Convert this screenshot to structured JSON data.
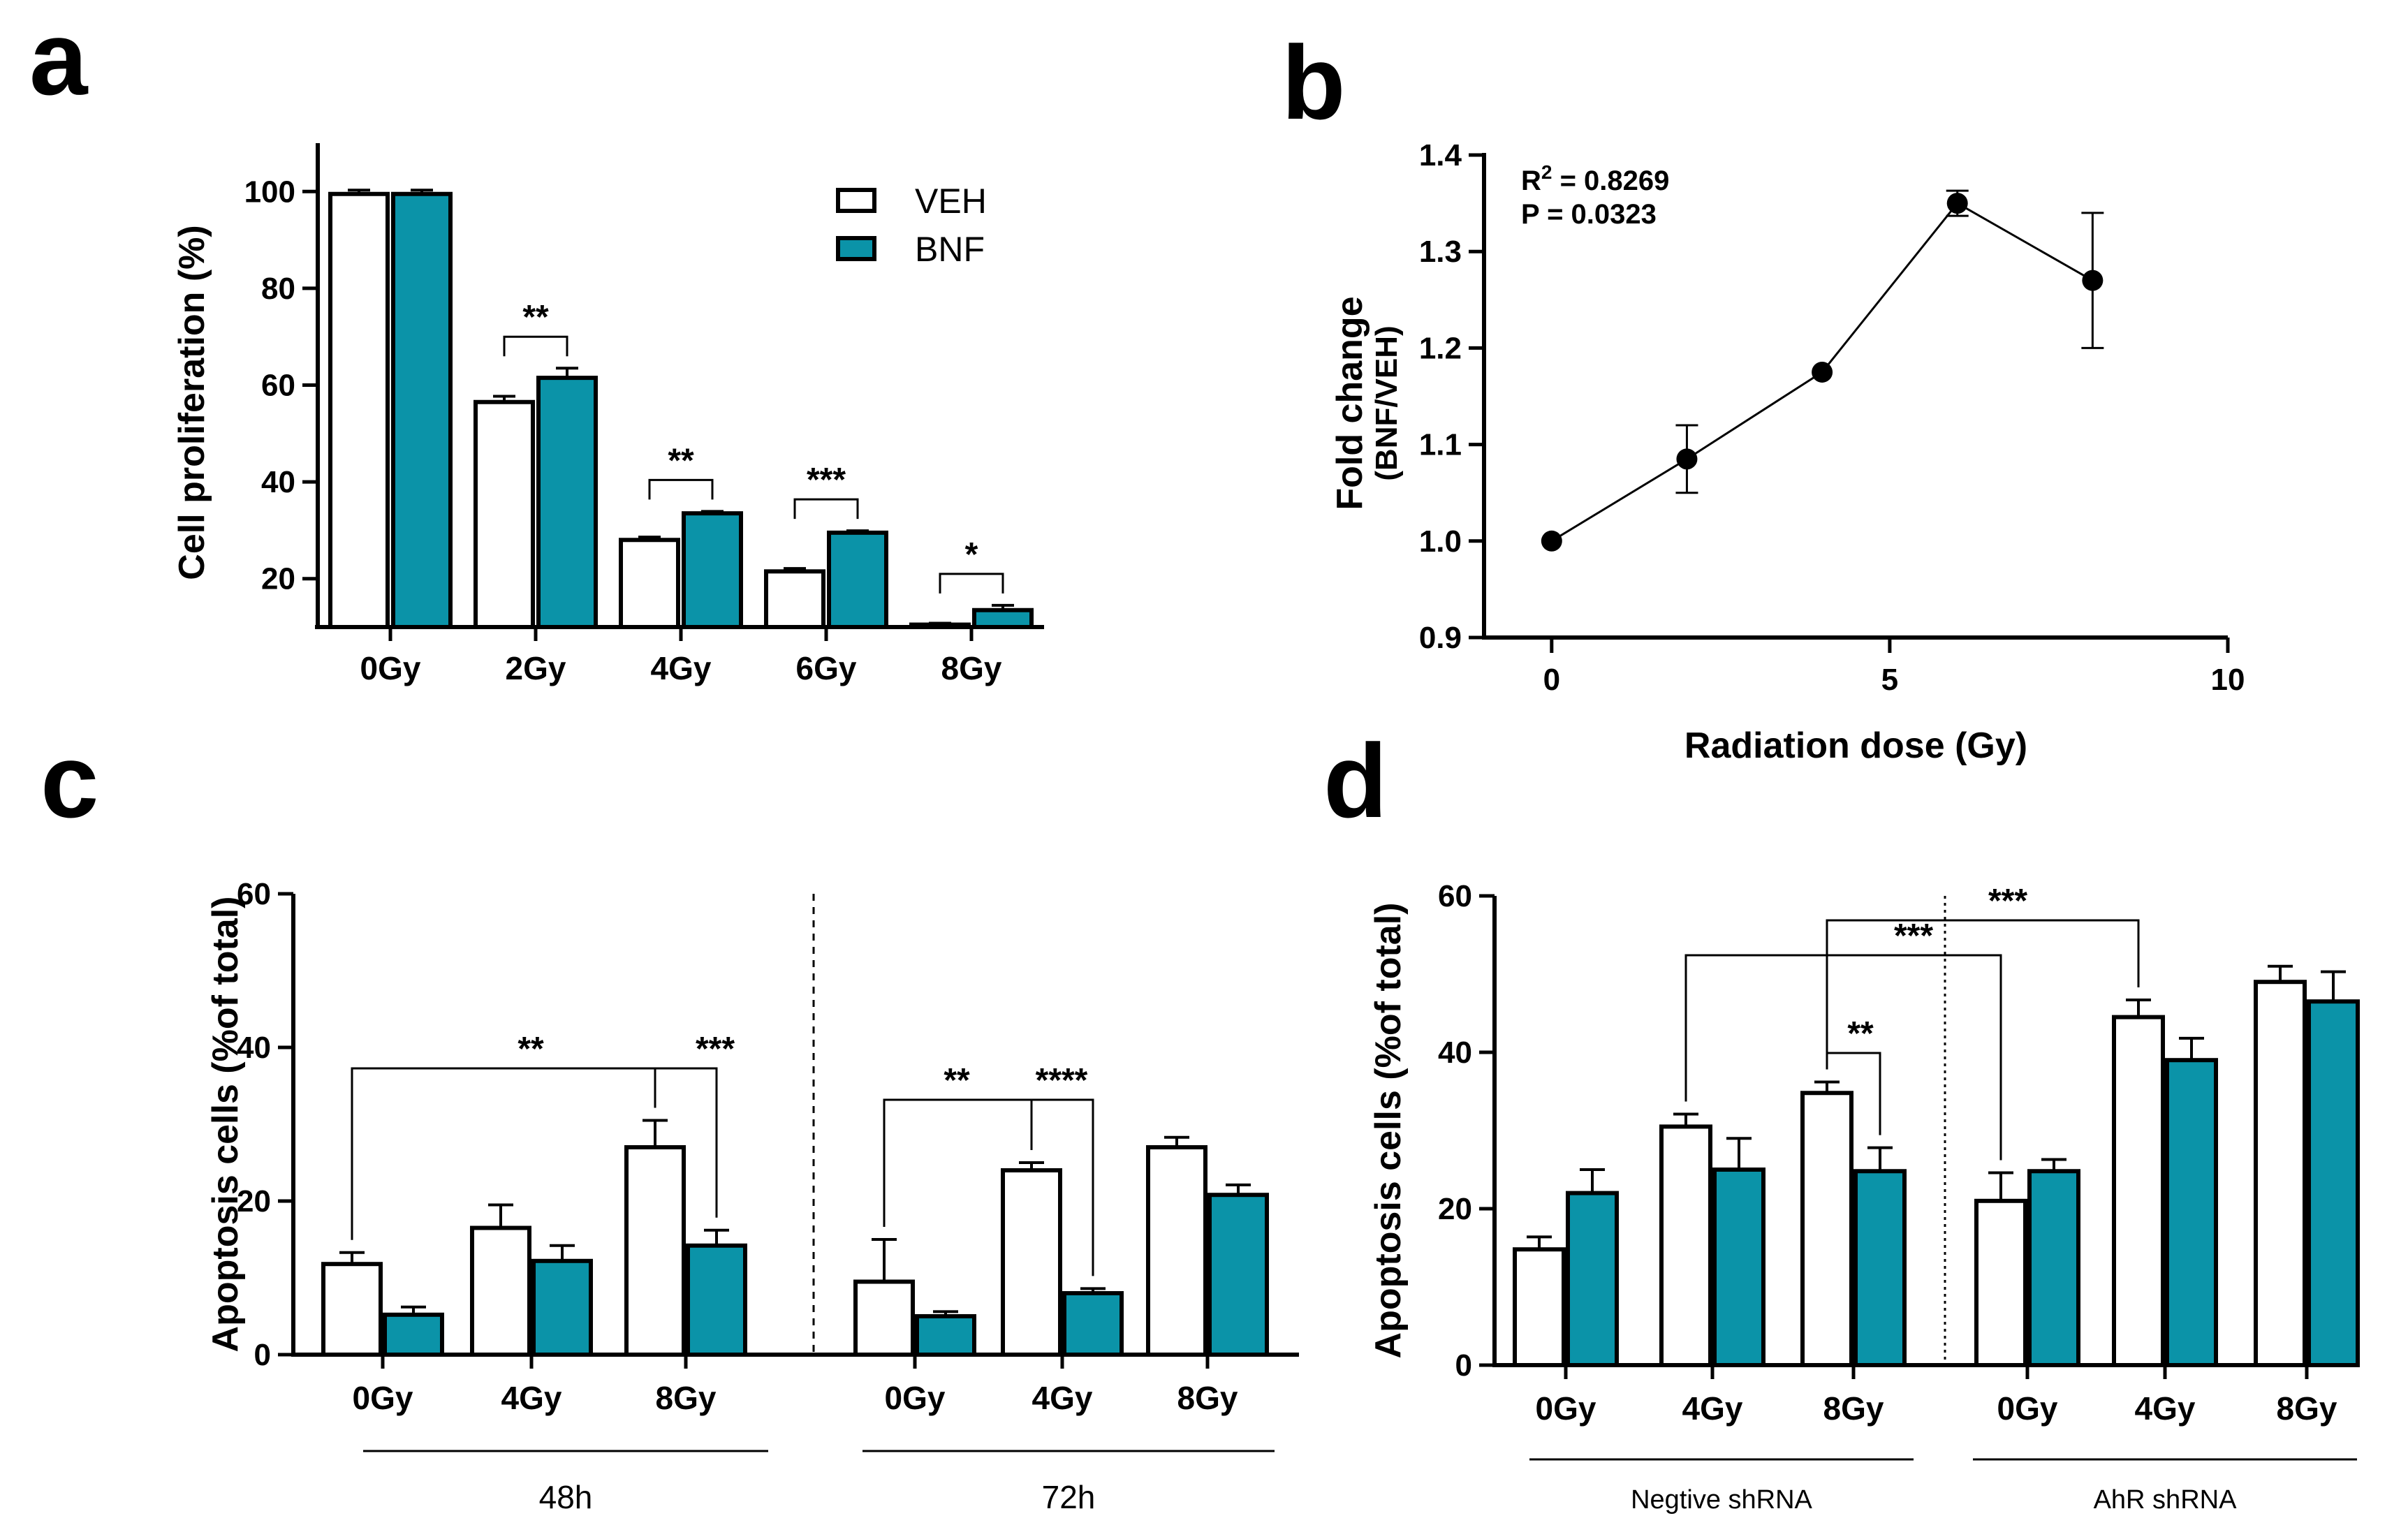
{
  "colors": {
    "veh": "#ffffff",
    "bnf": "#0b93a8",
    "stroke": "#000000"
  },
  "legend": {
    "veh": "VEH",
    "bnf": "BNF"
  },
  "chart_data": [
    {
      "panel": "a",
      "type": "bar",
      "ylabel": "Cell proliferation (%)",
      "ylim": [
        10,
        110
      ],
      "yticks": [
        20,
        40,
        60,
        80,
        100
      ],
      "categories": [
        "0Gy",
        "2Gy",
        "4Gy",
        "6Gy",
        "8Gy"
      ],
      "series": [
        {
          "name": "VEH",
          "values": [
            99.5,
            56.5,
            28.0,
            21.5,
            10.5
          ],
          "errors": [
            0.8,
            1.2,
            0.6,
            0.6,
            0.3
          ]
        },
        {
          "name": "BNF",
          "values": [
            99.5,
            61.5,
            33.5,
            29.5,
            13.5
          ],
          "errors": [
            0.8,
            2.0,
            0.4,
            0.4,
            1.0
          ]
        }
      ],
      "significance": [
        "",
        "**",
        "**",
        "***",
        "*"
      ]
    },
    {
      "panel": "b",
      "type": "line",
      "xlabel": "Radiation dose (Gy)",
      "ylabel": "Fold change",
      "ylabel2": "(BNF/VEH)",
      "xlim": [
        -1,
        10
      ],
      "ylim": [
        0.9,
        1.4
      ],
      "xticks": [
        0,
        5,
        10
      ],
      "yticks": [
        "0.9",
        "1.0",
        "1.1",
        "1.2",
        "1.3",
        "1.4"
      ],
      "x": [
        0,
        2,
        4,
        6,
        8
      ],
      "y": [
        1.0,
        1.085,
        1.175,
        1.35,
        1.27
      ],
      "errors": [
        0.0,
        0.035,
        0.0,
        0.013,
        0.07
      ],
      "r2_label": "R",
      "r2_sup": "2",
      "r2_value": " = 0.8269",
      "p_text": "P = 0.0323"
    },
    {
      "panel": "c",
      "type": "bar",
      "ylabel": "Apoptosis cells (%of total)",
      "ylim": [
        0,
        60
      ],
      "yticks": [
        0,
        20,
        40,
        60
      ],
      "groups": [
        "48h",
        "72h"
      ],
      "categories": [
        "0Gy",
        "4Gy",
        "8Gy",
        "0Gy",
        "4Gy",
        "8Gy"
      ],
      "series": [
        {
          "name": "VEH",
          "values": [
            11.8,
            16.5,
            27.0,
            9.5,
            24.0,
            27.0
          ],
          "errors": [
            1.5,
            3.0,
            3.5,
            5.5,
            1.0,
            1.3
          ]
        },
        {
          "name": "BNF",
          "values": [
            5.2,
            12.2,
            14.2,
            5.0,
            8.0,
            20.8
          ],
          "errors": [
            1.0,
            2.0,
            2.0,
            0.6,
            0.6,
            1.3
          ]
        }
      ],
      "significance": [
        {
          "label": "**"
        },
        {
          "label": "***"
        },
        {
          "label": "**"
        },
        {
          "label": "****"
        }
      ]
    },
    {
      "panel": "d",
      "type": "bar",
      "ylabel": "Apoptosis cells (%of total)",
      "ylim": [
        0,
        60
      ],
      "yticks": [
        0,
        20,
        40,
        60
      ],
      "groups": [
        "Negtive shRNA",
        "AhR shRNA"
      ],
      "categories": [
        "0Gy",
        "4Gy",
        "8Gy",
        "0Gy",
        "4Gy",
        "8Gy"
      ],
      "series": [
        {
          "name": "VEH",
          "values": [
            14.8,
            30.5,
            34.8,
            21.0,
            44.5,
            49.0
          ],
          "errors": [
            1.6,
            1.6,
            1.4,
            3.6,
            2.2,
            2.0
          ]
        },
        {
          "name": "BNF",
          "values": [
            22.0,
            25.0,
            24.8,
            24.8,
            39.0,
            46.5
          ],
          "errors": [
            3.0,
            4.0,
            3.0,
            1.5,
            2.8,
            3.8
          ]
        }
      ],
      "significance": [
        {
          "label": "***"
        },
        {
          "label": "***"
        },
        {
          "label": "**"
        }
      ]
    }
  ]
}
